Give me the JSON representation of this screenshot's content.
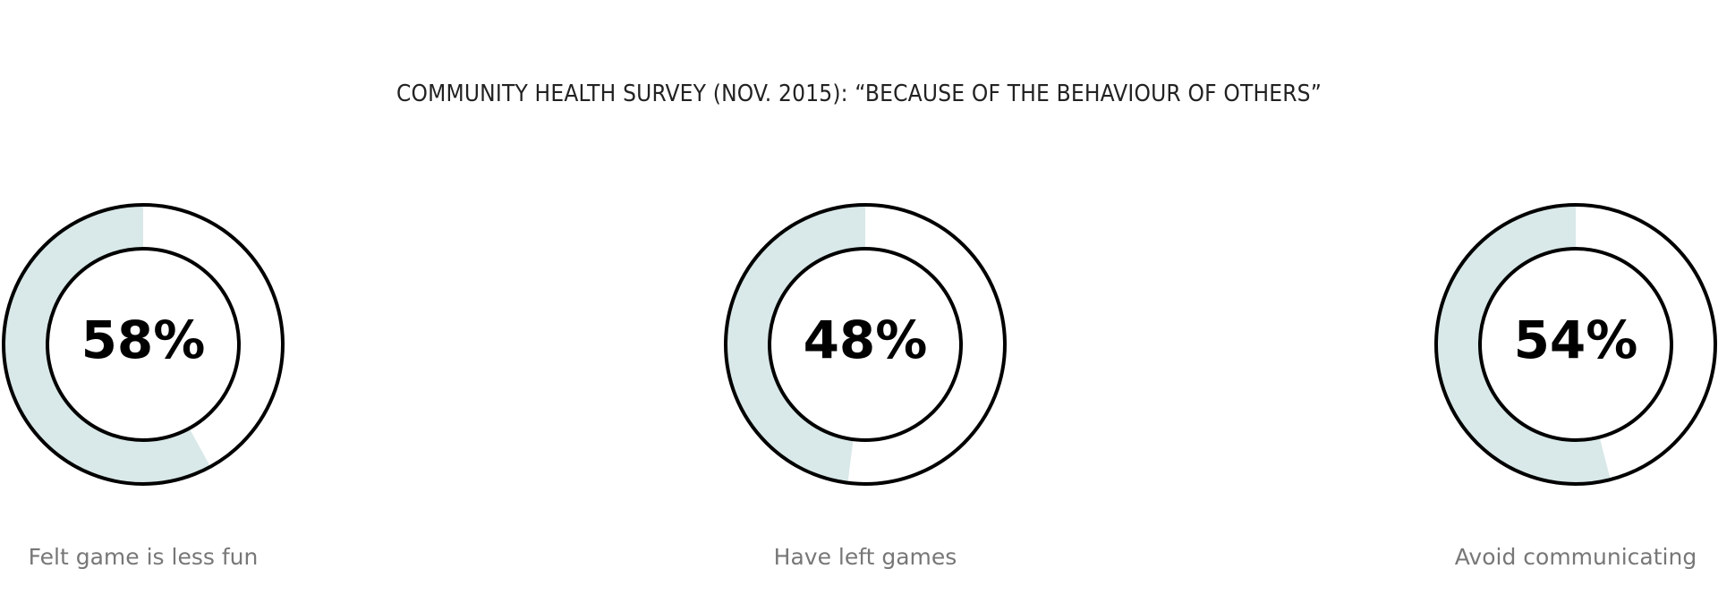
{
  "chart_data": {
    "type": "pie",
    "title": "COMMUNITY HEALTH SURVEY  (NOV. 2015):  “BECAUSE OF THE BEHAVIOUR OF OTHERS”",
    "items": [
      {
        "label": "Felt game is less fun",
        "value": 58,
        "value_text": "58%"
      },
      {
        "label": "Have left games",
        "value": 48,
        "value_text": "48%"
      },
      {
        "label": "Avoid communicating",
        "value": 54,
        "value_text": "54%"
      }
    ],
    "colors": {
      "fill": "#d9e8e8",
      "stroke": "#000000",
      "background": "#ffffff",
      "label": "#777777"
    }
  }
}
